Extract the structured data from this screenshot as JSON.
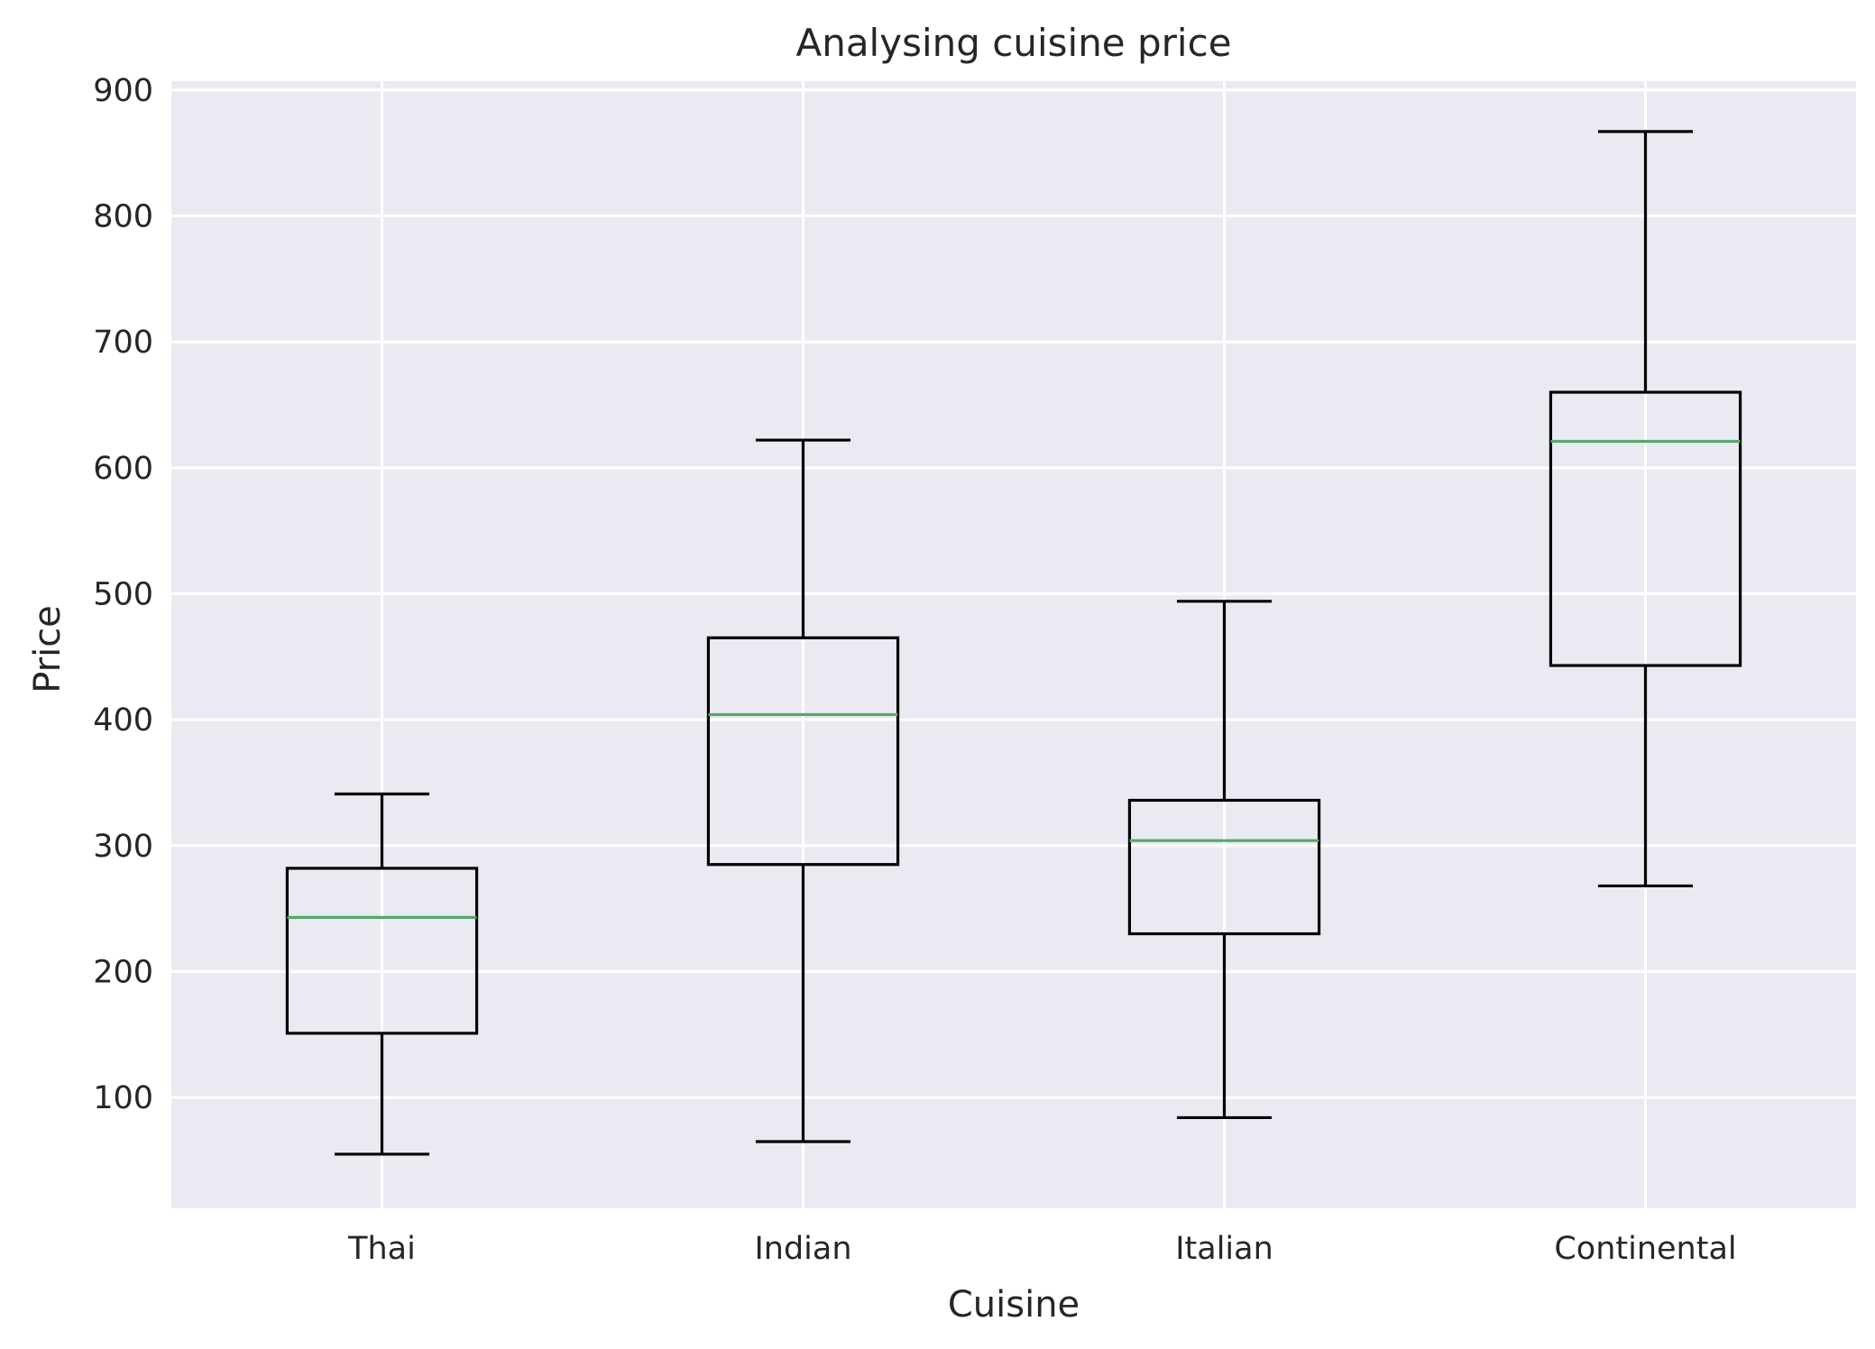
{
  "chart_data": {
    "type": "box",
    "title": "Analysing cuisine price",
    "xlabel": "Cuisine",
    "ylabel": "Price",
    "ylim": [
      12,
      907
    ],
    "yticks": [
      100,
      200,
      300,
      400,
      500,
      600,
      700,
      800,
      900
    ],
    "grid": true,
    "categories": [
      "Thai",
      "Indian",
      "Italian",
      "Continental"
    ],
    "boxes": [
      {
        "category": "Thai",
        "whisker_low": 55,
        "q1": 151,
        "median": 243,
        "q3": 282,
        "whisker_high": 341
      },
      {
        "category": "Indian",
        "whisker_low": 65,
        "q1": 285,
        "median": 404,
        "q3": 465,
        "whisker_high": 622
      },
      {
        "category": "Italian",
        "whisker_low": 84,
        "q1": 230,
        "median": 304,
        "q3": 336,
        "whisker_high": 494
      },
      {
        "category": "Continental",
        "whisker_low": 268,
        "q1": 443,
        "median": 621,
        "q3": 660,
        "whisker_high": 867
      }
    ],
    "colors": {
      "plot_background": "#eaeaf2",
      "grid": "#ffffff",
      "box": "#000000",
      "median": "#55a868"
    }
  }
}
